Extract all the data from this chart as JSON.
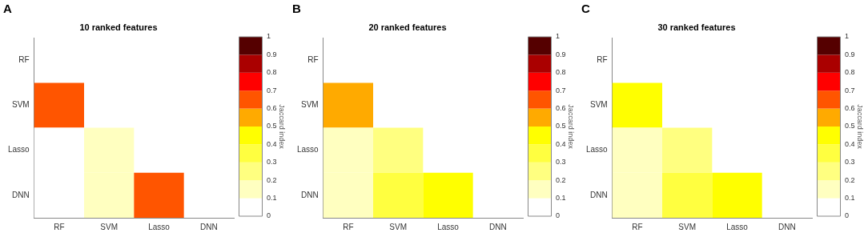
{
  "chart_data": [
    {
      "type": "heatmap",
      "title": "10 ranked features",
      "annotations": [
        "A"
      ],
      "clabel": "Jaccard index",
      "categories": [
        "RF",
        "SVM",
        "Lasso",
        "DNN"
      ],
      "y_categories": [
        "RF",
        "SVM",
        "Lasso",
        "DNN"
      ],
      "cells": [
        [
          null,
          null,
          null,
          null
        ],
        [
          0.65,
          null,
          null,
          null
        ],
        [
          0.05,
          0.15,
          null,
          null
        ],
        [
          0.05,
          0.15,
          0.65,
          null
        ]
      ],
      "clim": [
        0,
        1
      ],
      "cticks": [
        0,
        0.1,
        0.2,
        0.3,
        0.4,
        0.5,
        0.6,
        0.7,
        0.8,
        0.9,
        1
      ]
    },
    {
      "type": "heatmap",
      "title": "20 ranked features",
      "annotations": [
        "B"
      ],
      "clabel": "Jaccard index",
      "categories": [
        "RF",
        "SVM",
        "Lasso",
        "DNN"
      ],
      "y_categories": [
        "RF",
        "SVM",
        "Lasso",
        "DNN"
      ],
      "cells": [
        [
          null,
          null,
          null,
          null
        ],
        [
          0.55,
          null,
          null,
          null
        ],
        [
          0.15,
          0.25,
          null,
          null
        ],
        [
          0.15,
          0.35,
          0.45,
          null
        ]
      ],
      "clim": [
        0,
        1
      ],
      "cticks": [
        0,
        0.1,
        0.2,
        0.3,
        0.4,
        0.5,
        0.6,
        0.7,
        0.8,
        0.9,
        1
      ]
    },
    {
      "type": "heatmap",
      "title": "30 ranked features",
      "annotations": [
        "C"
      ],
      "clabel": "Jaccard index",
      "categories": [
        "RF",
        "SVM",
        "Lasso",
        "DNN"
      ],
      "y_categories": [
        "RF",
        "SVM",
        "Lasso",
        "DNN"
      ],
      "cells": [
        [
          null,
          null,
          null,
          null
        ],
        [
          0.45,
          null,
          null,
          null
        ],
        [
          0.15,
          0.25,
          null,
          null
        ],
        [
          0.15,
          0.35,
          0.45,
          null
        ]
      ],
      "clim": [
        0,
        1
      ],
      "cticks": [
        0,
        0.1,
        0.2,
        0.3,
        0.4,
        0.5,
        0.6,
        0.7,
        0.8,
        0.9,
        1
      ]
    }
  ]
}
